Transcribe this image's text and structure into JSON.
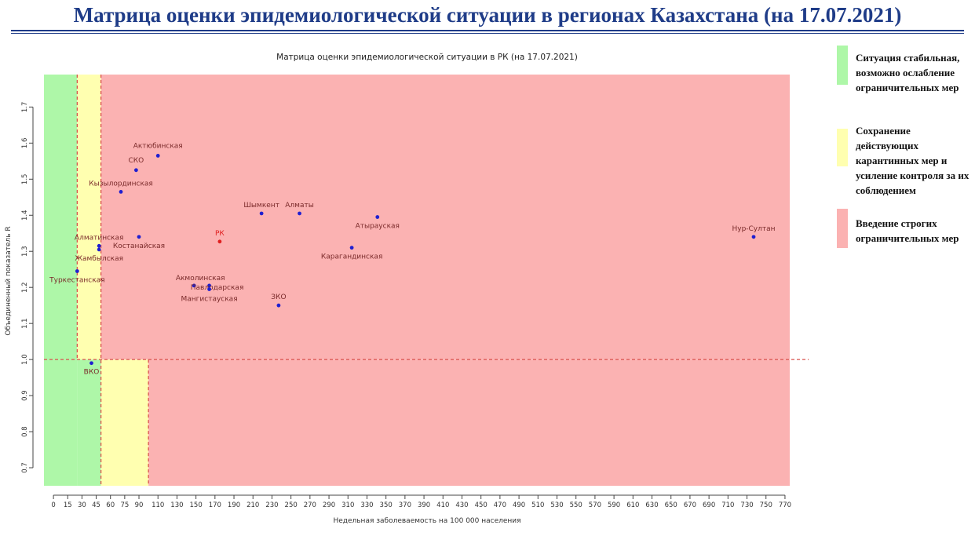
{
  "header": {
    "title": "Матрица оценки эпидемиологической ситуации в регионах Казахстана (на 17.07.2021)"
  },
  "legend": [
    {
      "text": "Ситуация стабильная, возможно ослабление ограничительных мер",
      "color": "#aef7a8"
    },
    {
      "text": "Сохранение действующих карантинных мер и усиление контроля за их соблюдением",
      "color": "#ffffb0"
    },
    {
      "text": "Введение строгих ограничительных мер",
      "color": "#fbb2b2"
    }
  ],
  "chart_data": {
    "type": "scatter",
    "title": "Матрица оценки эпидемиологической ситуации в РК (на 17.07.2021)",
    "xlabel": "Недельная заболеваемость на 100 000 населения",
    "ylabel": "Объединенный показатель R",
    "xlim": [
      -10,
      775
    ],
    "ylim": [
      0.65,
      1.79
    ],
    "x_ticks": [
      0,
      15,
      30,
      45,
      60,
      75,
      90,
      110,
      130,
      150,
      170,
      190,
      210,
      230,
      250,
      270,
      290,
      310,
      330,
      350,
      370,
      390,
      410,
      430,
      450,
      470,
      490,
      510,
      530,
      550,
      570,
      590,
      610,
      630,
      650,
      670,
      690,
      710,
      730,
      750,
      770
    ],
    "y_ticks": [
      0.7,
      0.8,
      0.9,
      1.0,
      1.1,
      1.2,
      1.3,
      1.4,
      1.5,
      1.6,
      1.7
    ],
    "grid": false,
    "colors": {
      "green_zone": "#aef7a8",
      "yellow_zone": "#ffffb0",
      "red_zone": "#fbb2b2",
      "threshold_line": "#d9534f",
      "point": "#1f1fd0",
      "point_rk": "#e02020",
      "label": "#7a2a2a",
      "label_rk": "#e02020"
    },
    "zones": [
      {
        "name": "green",
        "x": [
          -10,
          25
        ],
        "y": [
          0.65,
          1.79
        ]
      },
      {
        "name": "green",
        "x": [
          25,
          50
        ],
        "y": [
          0.65,
          1.0
        ]
      },
      {
        "name": "yellow",
        "x": [
          25,
          50
        ],
        "y": [
          1.0,
          1.79
        ]
      },
      {
        "name": "yellow",
        "x": [
          50,
          100
        ],
        "y": [
          0.65,
          1.0
        ]
      },
      {
        "name": "red",
        "x": [
          50,
          775
        ],
        "y": [
          1.0,
          1.79
        ]
      },
      {
        "name": "red",
        "x": [
          100,
          775
        ],
        "y": [
          0.65,
          1.0
        ]
      }
    ],
    "threshold_lines": [
      {
        "orientation": "vertical",
        "x": 25,
        "y": [
          1.0,
          1.79
        ]
      },
      {
        "orientation": "vertical",
        "x": 50,
        "y": [
          0.65,
          1.79
        ]
      },
      {
        "orientation": "vertical",
        "x": 100,
        "y": [
          0.65,
          1.0
        ]
      },
      {
        "orientation": "horizontal",
        "y": 1.0,
        "x": [
          -10,
          795
        ]
      }
    ],
    "points": [
      {
        "label": "Актюбинская",
        "x": 110,
        "y": 1.565,
        "dx": 0,
        "dy": -10,
        "anchor": "middle"
      },
      {
        "label": "СКО",
        "x": 87,
        "y": 1.525,
        "dx": 0,
        "dy": -10,
        "anchor": "middle"
      },
      {
        "label": "Кызылординская",
        "x": 71,
        "y": 1.465,
        "dx": 0,
        "dy": -8,
        "anchor": "middle"
      },
      {
        "label": "Шымкент",
        "x": 219,
        "y": 1.405,
        "dx": 0,
        "dy": -8,
        "anchor": "middle"
      },
      {
        "label": "Алматы",
        "x": 259,
        "y": 1.405,
        "dx": 0,
        "dy": -8,
        "anchor": "middle"
      },
      {
        "label": "Атырауская",
        "x": 341,
        "y": 1.395,
        "dx": 0,
        "dy": 14,
        "anchor": "middle"
      },
      {
        "label": "Нур-Султан",
        "x": 737,
        "y": 1.34,
        "dx": 0,
        "dy": -8,
        "anchor": "middle"
      },
      {
        "label": "Алматинская",
        "x": 48,
        "y": 1.315,
        "dx": 0,
        "dy": -8,
        "anchor": "middle"
      },
      {
        "label": "Жамбылская",
        "x": 48,
        "y": 1.305,
        "dx": 0,
        "dy": 14,
        "anchor": "middle"
      },
      {
        "label": "Костанайская",
        "x": 90,
        "y": 1.34,
        "dx": 0,
        "dy": 14,
        "anchor": "middle"
      },
      {
        "label": "Карагандинская",
        "x": 314,
        "y": 1.31,
        "dx": 0,
        "dy": 14,
        "anchor": "middle"
      },
      {
        "label": "РК",
        "x": 175,
        "y": 1.327,
        "dx": 0,
        "dy": -8,
        "anchor": "middle",
        "highlight": true
      },
      {
        "label": "Туркестанская",
        "x": 25,
        "y": 1.245,
        "dx": 0,
        "dy": 14,
        "anchor": "middle"
      },
      {
        "label": "Акмолинская",
        "x": 148,
        "y": 1.205,
        "dx": 8,
        "dy": -7,
        "anchor": "middle"
      },
      {
        "label": "Павлодарская",
        "x": 164,
        "y": 1.205,
        "dx": 10,
        "dy": 5,
        "anchor": "middle"
      },
      {
        "label": "Мангистауская",
        "x": 164,
        "y": 1.195,
        "dx": 0,
        "dy": 15,
        "anchor": "middle"
      },
      {
        "label": "ЗКО",
        "x": 237,
        "y": 1.15,
        "dx": 0,
        "dy": -8,
        "anchor": "middle"
      },
      {
        "label": "ВКО",
        "x": 40,
        "y": 0.99,
        "dx": 0,
        "dy": 14,
        "anchor": "middle"
      }
    ]
  }
}
